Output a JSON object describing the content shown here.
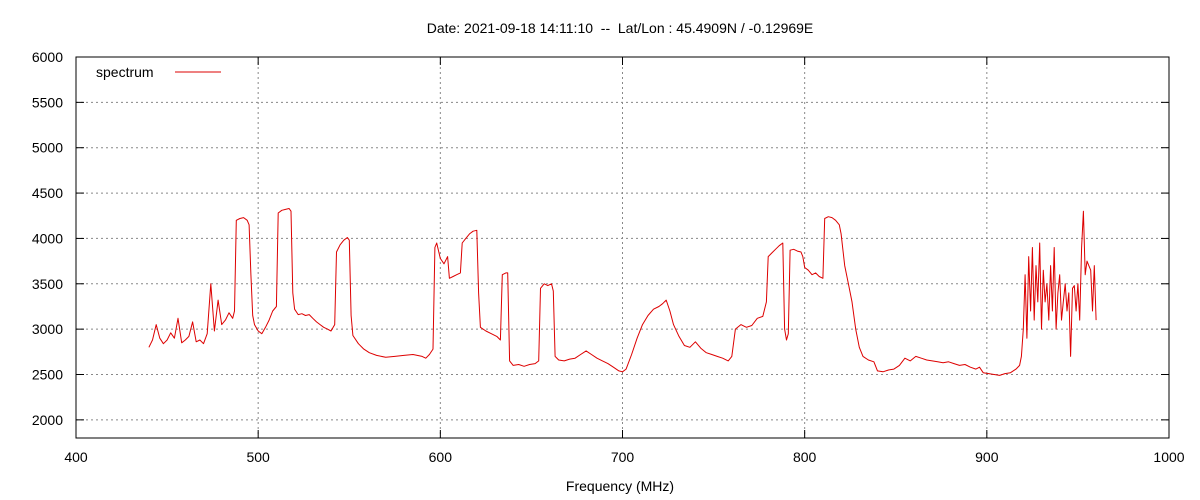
{
  "chart_data": {
    "type": "line",
    "title": "Date: 2021-09-18 14:11:10  --  Lat/Lon : 45.4909N / -0.12969E",
    "xlabel": "Frequency (MHz)",
    "ylabel": "",
    "xlim": [
      400,
      1000
    ],
    "ylim": [
      1800,
      6000
    ],
    "x_ticks": [
      400,
      500,
      600,
      700,
      800,
      900,
      1000
    ],
    "y_ticks": [
      2000,
      2500,
      3000,
      3500,
      4000,
      4500,
      5000,
      5500,
      6000
    ],
    "grid": true,
    "legend_position": "top-left",
    "series": [
      {
        "name": "spectrum",
        "color": "#dd0000",
        "points": [
          [
            440,
            2800
          ],
          [
            442,
            2880
          ],
          [
            444,
            3050
          ],
          [
            446,
            2900
          ],
          [
            448,
            2840
          ],
          [
            450,
            2880
          ],
          [
            452,
            2960
          ],
          [
            454,
            2900
          ],
          [
            456,
            3120
          ],
          [
            458,
            2850
          ],
          [
            460,
            2880
          ],
          [
            462,
            2920
          ],
          [
            464,
            3080
          ],
          [
            466,
            2860
          ],
          [
            468,
            2880
          ],
          [
            470,
            2840
          ],
          [
            472,
            2950
          ],
          [
            474,
            3500
          ],
          [
            476,
            2980
          ],
          [
            478,
            3320
          ],
          [
            480,
            3050
          ],
          [
            482,
            3100
          ],
          [
            484,
            3180
          ],
          [
            486,
            3120
          ],
          [
            487,
            3200
          ],
          [
            488,
            4200
          ],
          [
            490,
            4220
          ],
          [
            492,
            4230
          ],
          [
            494,
            4200
          ],
          [
            495,
            4150
          ],
          [
            496,
            3600
          ],
          [
            497,
            3150
          ],
          [
            498,
            3050
          ],
          [
            500,
            2980
          ],
          [
            502,
            2950
          ],
          [
            504,
            3020
          ],
          [
            506,
            3100
          ],
          [
            508,
            3200
          ],
          [
            510,
            3250
          ],
          [
            511,
            4280
          ],
          [
            513,
            4310
          ],
          [
            515,
            4320
          ],
          [
            517,
            4330
          ],
          [
            518,
            4300
          ],
          [
            519,
            3400
          ],
          [
            520,
            3220
          ],
          [
            522,
            3160
          ],
          [
            524,
            3170
          ],
          [
            526,
            3150
          ],
          [
            528,
            3160
          ],
          [
            530,
            3120
          ],
          [
            532,
            3080
          ],
          [
            534,
            3050
          ],
          [
            536,
            3020
          ],
          [
            538,
            3000
          ],
          [
            540,
            2980
          ],
          [
            542,
            3050
          ],
          [
            543,
            3850
          ],
          [
            545,
            3930
          ],
          [
            547,
            3980
          ],
          [
            549,
            4010
          ],
          [
            550,
            3980
          ],
          [
            551,
            3150
          ],
          [
            552,
            2930
          ],
          [
            555,
            2840
          ],
          [
            558,
            2780
          ],
          [
            561,
            2740
          ],
          [
            565,
            2710
          ],
          [
            570,
            2690
          ],
          [
            575,
            2700
          ],
          [
            580,
            2710
          ],
          [
            585,
            2720
          ],
          [
            590,
            2700
          ],
          [
            592,
            2680
          ],
          [
            594,
            2720
          ],
          [
            596,
            2780
          ],
          [
            597,
            3900
          ],
          [
            598,
            3950
          ],
          [
            600,
            3780
          ],
          [
            602,
            3720
          ],
          [
            604,
            3800
          ],
          [
            605,
            3560
          ],
          [
            607,
            3580
          ],
          [
            609,
            3600
          ],
          [
            611,
            3620
          ],
          [
            612,
            3950
          ],
          [
            614,
            4000
          ],
          [
            616,
            4050
          ],
          [
            618,
            4080
          ],
          [
            620,
            4090
          ],
          [
            621,
            3400
          ],
          [
            622,
            3020
          ],
          [
            625,
            2980
          ],
          [
            628,
            2950
          ],
          [
            631,
            2920
          ],
          [
            633,
            2880
          ],
          [
            634,
            3600
          ],
          [
            636,
            3620
          ],
          [
            637,
            3620
          ],
          [
            638,
            2650
          ],
          [
            640,
            2600
          ],
          [
            643,
            2610
          ],
          [
            646,
            2590
          ],
          [
            649,
            2610
          ],
          [
            652,
            2620
          ],
          [
            654,
            2650
          ],
          [
            655,
            3450
          ],
          [
            657,
            3500
          ],
          [
            659,
            3480
          ],
          [
            661,
            3500
          ],
          [
            662,
            3420
          ],
          [
            663,
            2700
          ],
          [
            665,
            2660
          ],
          [
            668,
            2650
          ],
          [
            671,
            2670
          ],
          [
            674,
            2680
          ],
          [
            677,
            2720
          ],
          [
            680,
            2760
          ],
          [
            683,
            2720
          ],
          [
            686,
            2680
          ],
          [
            689,
            2650
          ],
          [
            692,
            2620
          ],
          [
            695,
            2580
          ],
          [
            698,
            2540
          ],
          [
            700,
            2530
          ],
          [
            702,
            2560
          ],
          [
            705,
            2720
          ],
          [
            708,
            2900
          ],
          [
            711,
            3050
          ],
          [
            714,
            3150
          ],
          [
            717,
            3220
          ],
          [
            720,
            3250
          ],
          [
            722,
            3280
          ],
          [
            724,
            3320
          ],
          [
            726,
            3200
          ],
          [
            728,
            3050
          ],
          [
            731,
            2920
          ],
          [
            734,
            2820
          ],
          [
            737,
            2800
          ],
          [
            740,
            2860
          ],
          [
            743,
            2790
          ],
          [
            746,
            2740
          ],
          [
            749,
            2720
          ],
          [
            752,
            2700
          ],
          [
            755,
            2680
          ],
          [
            758,
            2650
          ],
          [
            760,
            2700
          ],
          [
            762,
            3000
          ],
          [
            765,
            3050
          ],
          [
            768,
            3020
          ],
          [
            771,
            3040
          ],
          [
            774,
            3120
          ],
          [
            777,
            3140
          ],
          [
            779,
            3300
          ],
          [
            780,
            3800
          ],
          [
            782,
            3840
          ],
          [
            784,
            3880
          ],
          [
            786,
            3920
          ],
          [
            788,
            3950
          ],
          [
            789,
            3000
          ],
          [
            790,
            2880
          ],
          [
            791,
            2950
          ],
          [
            792,
            3870
          ],
          [
            794,
            3880
          ],
          [
            796,
            3860
          ],
          [
            798,
            3850
          ],
          [
            799,
            3800
          ],
          [
            800,
            3680
          ],
          [
            802,
            3650
          ],
          [
            804,
            3600
          ],
          [
            806,
            3620
          ],
          [
            808,
            3580
          ],
          [
            810,
            3560
          ],
          [
            811,
            4220
          ],
          [
            813,
            4240
          ],
          [
            815,
            4230
          ],
          [
            817,
            4200
          ],
          [
            819,
            4150
          ],
          [
            820,
            4050
          ],
          [
            822,
            3700
          ],
          [
            824,
            3500
          ],
          [
            826,
            3300
          ],
          [
            828,
            3000
          ],
          [
            830,
            2800
          ],
          [
            832,
            2700
          ],
          [
            835,
            2660
          ],
          [
            838,
            2640
          ],
          [
            840,
            2540
          ],
          [
            843,
            2530
          ],
          [
            846,
            2550
          ],
          [
            849,
            2560
          ],
          [
            852,
            2600
          ],
          [
            855,
            2680
          ],
          [
            858,
            2650
          ],
          [
            861,
            2700
          ],
          [
            864,
            2680
          ],
          [
            867,
            2660
          ],
          [
            870,
            2650
          ],
          [
            873,
            2640
          ],
          [
            876,
            2630
          ],
          [
            879,
            2640
          ],
          [
            882,
            2620
          ],
          [
            885,
            2600
          ],
          [
            888,
            2610
          ],
          [
            891,
            2580
          ],
          [
            894,
            2560
          ],
          [
            896,
            2580
          ],
          [
            898,
            2520
          ],
          [
            901,
            2510
          ],
          [
            904,
            2500
          ],
          [
            907,
            2490
          ],
          [
            910,
            2510
          ],
          [
            913,
            2520
          ],
          [
            916,
            2560
          ],
          [
            918,
            2600
          ],
          [
            919,
            2700
          ],
          [
            920,
            3000
          ],
          [
            921,
            3600
          ],
          [
            922,
            2900
          ],
          [
            923,
            3800
          ],
          [
            924,
            3200
          ],
          [
            925,
            3900
          ],
          [
            926,
            3100
          ],
          [
            927,
            3700
          ],
          [
            928,
            3300
          ],
          [
            929,
            3950
          ],
          [
            930,
            3000
          ],
          [
            931,
            3650
          ],
          [
            932,
            3300
          ],
          [
            933,
            3500
          ],
          [
            934,
            3100
          ],
          [
            935,
            3700
          ],
          [
            936,
            3200
          ],
          [
            937,
            3900
          ],
          [
            938,
            3000
          ],
          [
            939,
            3400
          ],
          [
            940,
            3600
          ],
          [
            941,
            3100
          ],
          [
            942,
            3300
          ],
          [
            943,
            3500
          ],
          [
            944,
            3200
          ],
          [
            945,
            3400
          ],
          [
            946,
            2700
          ],
          [
            947,
            3450
          ],
          [
            948,
            3480
          ],
          [
            949,
            3200
          ],
          [
            950,
            3500
          ],
          [
            951,
            3100
          ],
          [
            952,
            3900
          ],
          [
            953,
            4300
          ],
          [
            954,
            3600
          ],
          [
            955,
            3750
          ],
          [
            956,
            3700
          ],
          [
            957,
            3650
          ],
          [
            958,
            3200
          ],
          [
            959,
            3700
          ],
          [
            960,
            3100
          ]
        ]
      }
    ]
  }
}
